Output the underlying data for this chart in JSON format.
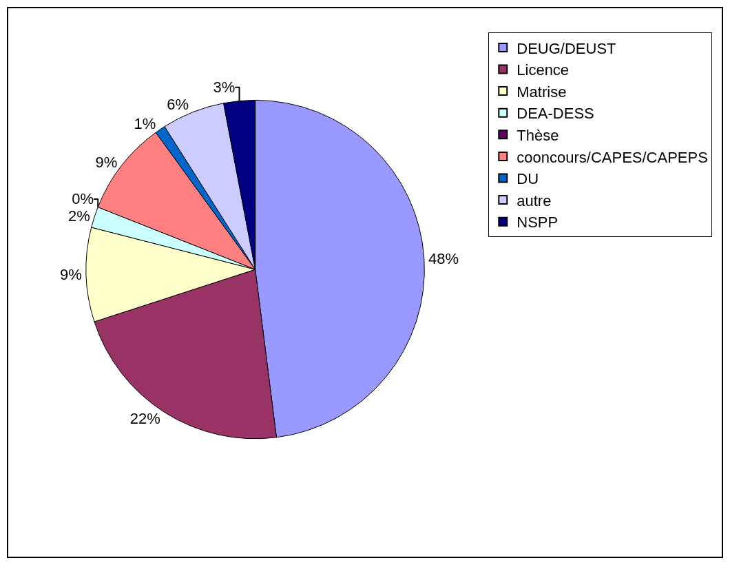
{
  "chart_data": {
    "type": "pie",
    "categories": [
      "DEUG/DEUST",
      "Licence",
      "Matrise",
      "DEA-DESS",
      "Thèse",
      "cooncours/CAPES/CAPEPS",
      "DU",
      "autre",
      "NSPP"
    ],
    "values": [
      48,
      22,
      9,
      2,
      0,
      9,
      1,
      6,
      3
    ],
    "value_labels": [
      "48%",
      "22%",
      "9%",
      "2%",
      "0%",
      "9%",
      "1%",
      "6%",
      "3%"
    ],
    "colors": [
      "#9999ff",
      "#993366",
      "#ffffcc",
      "#ccffff",
      "#660066",
      "#ff8080",
      "#0066cc",
      "#ccccff",
      "#000080"
    ],
    "legend": "right"
  }
}
